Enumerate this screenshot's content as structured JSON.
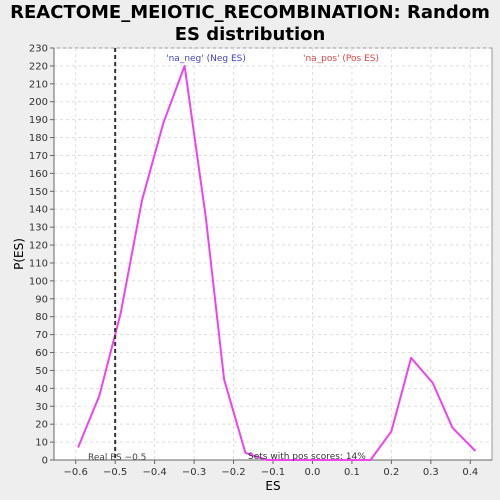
{
  "chart_data": {
    "type": "line",
    "title": "REACTOME_MEIOTIC_RECOMBINATION: Random ES distribution",
    "xlabel": "ES",
    "ylabel": "P(ES)",
    "xlim": [
      -0.655,
      0.455
    ],
    "ylim": [
      0,
      230
    ],
    "xticks": [
      -0.6,
      -0.5,
      -0.4,
      -0.3,
      -0.2,
      -0.1,
      0.0,
      0.1,
      0.2,
      0.3,
      0.4
    ],
    "xtick_labels": [
      "−0.6",
      "−0.5",
      "−0.4",
      "−0.3",
      "−0.2",
      "−0.1",
      "0.0",
      "0.1",
      "0.2",
      "0.3",
      "0.4"
    ],
    "yticks": [
      0,
      10,
      20,
      30,
      40,
      50,
      60,
      70,
      80,
      90,
      100,
      110,
      120,
      130,
      140,
      150,
      160,
      170,
      180,
      190,
      200,
      210,
      220,
      230
    ],
    "grid": true,
    "series": [
      {
        "color": "#ee44ee",
        "x": [
          -0.594,
          -0.54,
          -0.486,
          -0.432,
          -0.378,
          -0.324,
          -0.27,
          -0.224,
          -0.17,
          -0.116,
          -0.062,
          0.0,
          0.05,
          0.1,
          0.147,
          0.2,
          0.25,
          0.305,
          0.355,
          0.413
        ],
        "y": [
          7,
          36,
          82,
          145,
          188,
          220,
          135,
          45,
          4,
          0,
          0,
          0,
          0,
          0,
          0,
          16,
          57,
          43,
          18,
          5
        ]
      }
    ],
    "real_es": {
      "x": -0.5,
      "label": "Real ES −0.5"
    },
    "annotations": {
      "neg": {
        "text": "'na_neg' (Neg ES)",
        "color": "#4444cc"
      },
      "pos": {
        "text": "'na_pos' (Pos ES)",
        "color": "#dd4444"
      },
      "sets": {
        "text": "Sets with pos scores: 14%",
        "color": "#333333"
      }
    }
  }
}
